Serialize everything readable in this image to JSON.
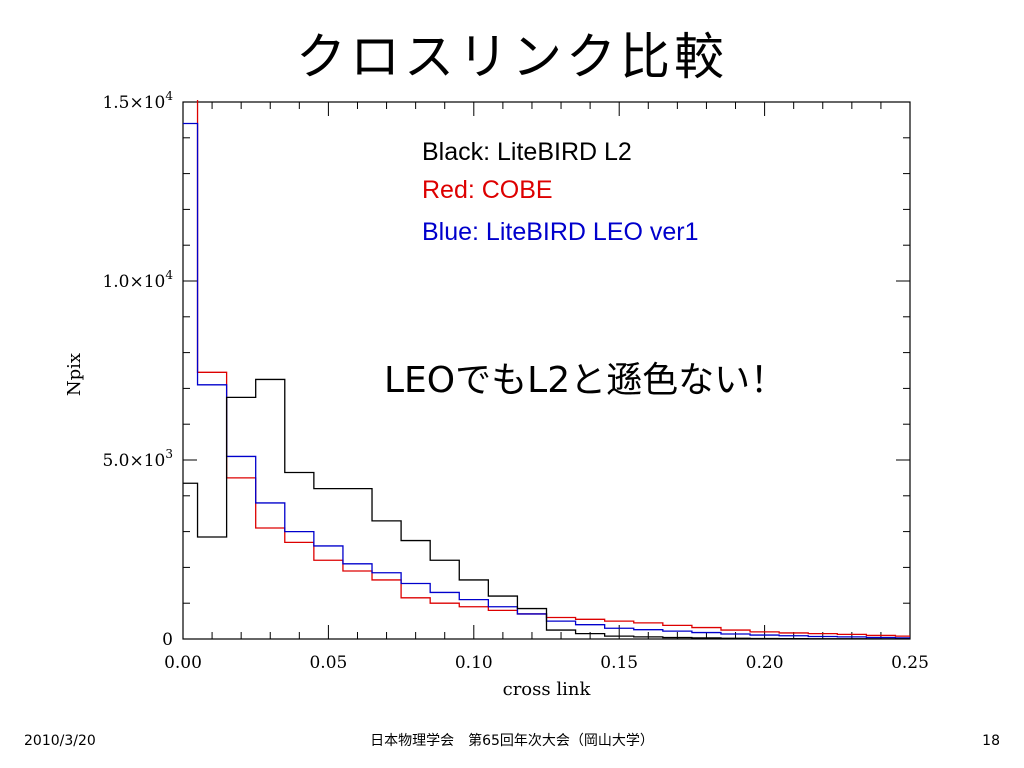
{
  "slide": {
    "title": "クロスリンク比較",
    "annotation": "LEOでもL2と遜色ない！",
    "footer_date": "2010/3/20",
    "footer_center": "日本物理学会　第65回年次大会（岡山大学）",
    "page_number": "18"
  },
  "chart_data": {
    "type": "line",
    "xlabel": "cross link",
    "ylabel": "Npix",
    "xlim": [
      0,
      0.25
    ],
    "ylim": [
      0,
      15000
    ],
    "x_ticks": [
      {
        "value": 0,
        "label": "0.00"
      },
      {
        "value": 0.05,
        "label": "0.05"
      },
      {
        "value": 0.1,
        "label": "0.10"
      },
      {
        "value": 0.15,
        "label": "0.15"
      },
      {
        "value": 0.2,
        "label": "0.20"
      },
      {
        "value": 0.25,
        "label": "0.25"
      }
    ],
    "y_ticks": [
      {
        "value": 0,
        "label": "0",
        "exp": ""
      },
      {
        "value": 5000,
        "label": "5.0×10",
        "exp": "3"
      },
      {
        "value": 10000,
        "label": "1.0×10",
        "exp": "4"
      },
      {
        "value": 15000,
        "label": "1.5×10",
        "exp": "4"
      }
    ],
    "bin_edges": [
      0,
      0.005,
      0.015,
      0.025,
      0.035,
      0.045,
      0.055,
      0.065,
      0.075,
      0.085,
      0.095,
      0.105,
      0.115,
      0.125,
      0.135,
      0.145,
      0.155,
      0.165,
      0.175,
      0.185,
      0.195,
      0.205,
      0.215,
      0.225,
      0.235,
      0.245,
      0.25
    ],
    "series": [
      {
        "name": "Black: LiteBIRD L2",
        "color": "#000000",
        "values": [
          4350,
          2850,
          6750,
          7250,
          4650,
          4200,
          4200,
          3300,
          2750,
          2200,
          1650,
          1200,
          850,
          250,
          150,
          80,
          60,
          40,
          30,
          20,
          15,
          10,
          8,
          5,
          3,
          3
        ]
      },
      {
        "name": "Red: COBE",
        "color": "#dd0000",
        "values": [
          15500,
          7450,
          4500,
          3100,
          2700,
          2200,
          1900,
          1650,
          1150,
          1000,
          900,
          800,
          700,
          600,
          550,
          500,
          450,
          380,
          320,
          250,
          200,
          170,
          150,
          130,
          100,
          80
        ]
      },
      {
        "name": "Blue: LiteBIRD LEO ver1",
        "color": "#0000cc",
        "values": [
          14400,
          7100,
          5100,
          3800,
          3000,
          2600,
          2100,
          1850,
          1550,
          1300,
          1100,
          900,
          700,
          500,
          400,
          300,
          260,
          220,
          180,
          140,
          110,
          90,
          70,
          60,
          40,
          30
        ]
      }
    ],
    "legend_position": "top-right"
  }
}
